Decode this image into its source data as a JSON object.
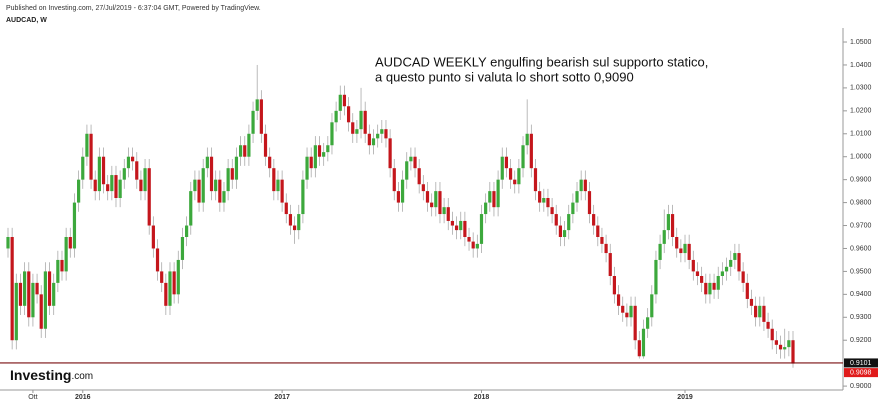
{
  "chart_data": {
    "type": "candlestick",
    "published": "Published on Investing.com, 27/Jul/2019 - 6:37:04 GMT, Powered by TradingView.",
    "title": "AUDCAD, W",
    "annotation": [
      "AUDCAD WEEKLY engulfing bearish sul supporto statico,",
      "a questo punto si valuta lo short sotto 0,9090"
    ],
    "logo": [
      "Investing",
      ".com"
    ],
    "up_color": "#3ca83c",
    "down_color": "#c4161c",
    "ylim": [
      0.8983,
      1.0596
    ],
    "yticks": [
      {
        "value": 0.9,
        "label": "0.9000"
      },
      {
        "value": 0.92,
        "label": "0.9200"
      },
      {
        "value": 0.93,
        "label": "0.9300"
      },
      {
        "value": 0.94,
        "label": "0.9400"
      },
      {
        "value": 0.95,
        "label": "0.9500"
      },
      {
        "value": 0.96,
        "label": "0.9600"
      },
      {
        "value": 0.97,
        "label": "0.9700"
      },
      {
        "value": 0.98,
        "label": "0.9800"
      },
      {
        "value": 0.99,
        "label": "0.9900"
      },
      {
        "value": 1.0,
        "label": "1.0000"
      },
      {
        "value": 1.01,
        "label": "1.0100"
      },
      {
        "value": 1.02,
        "label": "1.0200"
      },
      {
        "value": 1.03,
        "label": "1.0300"
      },
      {
        "value": 1.04,
        "label": "1.0400"
      },
      {
        "value": 1.05,
        "label": "1.0500"
      }
    ],
    "xticks": [
      {
        "value": 6,
        "label": "Ott"
      },
      {
        "value": 18,
        "label": "2016"
      },
      {
        "value": 66,
        "label": "2017"
      },
      {
        "value": 114,
        "label": "2018"
      },
      {
        "value": 163,
        "label": "2019"
      }
    ],
    "price_line": {
      "value": 0.9101,
      "label": "0.9101",
      "color": "#7a0f12"
    },
    "last_price": {
      "value": 0.9098,
      "label": "0.9098",
      "color": "#e01b1b"
    },
    "open": [
      0.96,
      0.965,
      0.92,
      0.945,
      0.935,
      0.95,
      0.93,
      0.945,
      0.94,
      0.925,
      0.95,
      0.935,
      0.945,
      0.955,
      0.95,
      0.965,
      0.96,
      0.98,
      0.99,
      1.0,
      1.01,
      0.99,
      0.985,
      1.0,
      0.988,
      0.985,
      0.992,
      0.982,
      0.99,
      0.995,
      1.0,
      0.998,
      0.99,
      0.985,
      0.995,
      0.97,
      0.96,
      0.95,
      0.945,
      0.935,
      0.95,
      0.94,
      0.955,
      0.965,
      0.97,
      0.985,
      0.99,
      0.98,
      0.995,
      1.0,
      0.985,
      0.99,
      0.98,
      0.985,
      0.995,
      0.99,
      1.0,
      1.005,
      1.0,
      1.01,
      1.02,
      1.025,
      1.01,
      1.0,
      0.995,
      0.985,
      0.99,
      0.98,
      0.975,
      0.97,
      0.968,
      0.975,
      0.99,
      1.0,
      0.995,
      1.005,
      1.0,
      1.002,
      1.005,
      1.015,
      1.02,
      1.027,
      1.022,
      1.015,
      1.01,
      1.012,
      1.02,
      1.01,
      1.005,
      1.008,
      1.01,
      1.012,
      1.008,
      0.995,
      0.985,
      0.98,
      0.99,
      0.998,
      1.0,
      0.995,
      0.988,
      0.985,
      0.98,
      0.978,
      0.985,
      0.975,
      0.978,
      0.972,
      0.97,
      0.968,
      0.972,
      0.965,
      0.963,
      0.96,
      0.962,
      0.975,
      0.98,
      0.985,
      0.978,
      0.99,
      1.0,
      0.995,
      0.99,
      0.988,
      0.995,
      1.005,
      1.01,
      0.995,
      0.985,
      0.98,
      0.982,
      0.978,
      0.975,
      0.97,
      0.965,
      0.968,
      0.975,
      0.98,
      0.985,
      0.99,
      0.985,
      0.975,
      0.97,
      0.965,
      0.962,
      0.958,
      0.948,
      0.94,
      0.935,
      0.932,
      0.93,
      0.935,
      0.92,
      0.913,
      0.925,
      0.93,
      0.94,
      0.955,
      0.962,
      0.968,
      0.975,
      0.965,
      0.96,
      0.958,
      0.962,
      0.955,
      0.95,
      0.948,
      0.945,
      0.94,
      0.945,
      0.942,
      0.948,
      0.95,
      0.952,
      0.955,
      0.958,
      0.95,
      0.945,
      0.938,
      0.935,
      0.93,
      0.935,
      0.928,
      0.925,
      0.92,
      0.918,
      0.916,
      0.917,
      0.92
    ],
    "high": [
      0.969,
      0.969,
      0.949,
      0.949,
      0.954,
      0.954,
      0.949,
      0.949,
      0.944,
      0.954,
      0.954,
      0.949,
      0.959,
      0.959,
      0.969,
      0.969,
      0.984,
      0.994,
      1.004,
      1.014,
      1.014,
      0.994,
      1.004,
      1.004,
      0.992,
      0.996,
      0.996,
      0.994,
      0.999,
      1.004,
      1.004,
      1.002,
      0.994,
      0.999,
      0.999,
      0.974,
      0.964,
      0.954,
      0.949,
      0.954,
      0.954,
      0.959,
      0.969,
      0.974,
      0.989,
      0.994,
      0.994,
      0.999,
      1.004,
      1.004,
      0.994,
      0.994,
      0.989,
      0.999,
      0.999,
      1.004,
      1.009,
      1.009,
      1.014,
      1.024,
      1.04,
      1.029,
      1.014,
      1.004,
      0.999,
      0.994,
      0.994,
      0.984,
      0.979,
      0.974,
      0.979,
      0.994,
      1.004,
      1.004,
      1.009,
      1.009,
      1.006,
      1.009,
      1.019,
      1.024,
      1.031,
      1.031,
      1.026,
      1.019,
      1.016,
      1.03,
      1.024,
      1.014,
      1.012,
      1.014,
      1.016,
      1.016,
      1.012,
      0.999,
      0.989,
      0.994,
      1.002,
      1.004,
      1.004,
      0.999,
      0.992,
      0.989,
      0.984,
      0.989,
      0.989,
      0.982,
      0.982,
      0.976,
      0.974,
      0.976,
      0.976,
      0.969,
      0.967,
      0.966,
      0.979,
      0.984,
      0.989,
      0.989,
      0.994,
      1.004,
      1.004,
      0.999,
      0.994,
      0.999,
      1.009,
      1.025,
      1.014,
      0.999,
      0.989,
      0.986,
      0.986,
      0.982,
      0.979,
      0.974,
      0.972,
      0.979,
      0.984,
      0.989,
      0.994,
      0.994,
      0.989,
      0.979,
      0.974,
      0.969,
      0.966,
      0.962,
      0.952,
      0.944,
      0.939,
      0.936,
      0.939,
      0.939,
      0.924,
      0.929,
      0.934,
      0.944,
      0.959,
      0.966,
      0.977,
      0.979,
      0.979,
      0.969,
      0.964,
      0.966,
      0.966,
      0.959,
      0.954,
      0.952,
      0.949,
      0.949,
      0.949,
      0.952,
      0.954,
      0.956,
      0.959,
      0.962,
      0.962,
      0.954,
      0.949,
      0.942,
      0.939,
      0.939,
      0.939,
      0.932,
      0.929,
      0.924,
      0.922,
      0.925,
      0.924,
      0.924
    ],
    "low": [
      0.956,
      0.916,
      0.916,
      0.931,
      0.931,
      0.926,
      0.926,
      0.936,
      0.921,
      0.921,
      0.931,
      0.931,
      0.941,
      0.946,
      0.946,
      0.956,
      0.956,
      0.976,
      0.986,
      0.996,
      0.986,
      0.981,
      0.981,
      0.984,
      0.981,
      0.981,
      0.978,
      0.978,
      0.986,
      0.991,
      0.994,
      0.986,
      0.981,
      0.981,
      0.966,
      0.956,
      0.946,
      0.941,
      0.931,
      0.931,
      0.936,
      0.936,
      0.951,
      0.961,
      0.966,
      0.981,
      0.976,
      0.976,
      0.991,
      0.981,
      0.981,
      0.976,
      0.976,
      0.981,
      0.986,
      0.986,
      0.996,
      0.996,
      0.996,
      1.006,
      1.016,
      1.006,
      0.996,
      0.991,
      0.981,
      0.981,
      0.976,
      0.971,
      0.966,
      0.962,
      0.964,
      0.971,
      0.986,
      0.991,
      0.991,
      0.996,
      0.996,
      0.998,
      1.001,
      1.011,
      1.016,
      1.018,
      1.011,
      1.006,
      1.006,
      1.008,
      1.006,
      1.001,
      1.001,
      1.004,
      1.006,
      1.004,
      0.991,
      0.981,
      0.976,
      0.976,
      0.986,
      0.994,
      0.991,
      0.984,
      0.981,
      0.976,
      0.974,
      0.974,
      0.971,
      0.971,
      0.968,
      0.966,
      0.964,
      0.964,
      0.961,
      0.959,
      0.956,
      0.956,
      0.958,
      0.971,
      0.976,
      0.974,
      0.974,
      0.986,
      0.991,
      0.986,
      0.984,
      0.984,
      0.991,
      1.001,
      0.991,
      0.981,
      0.976,
      0.976,
      0.974,
      0.971,
      0.966,
      0.961,
      0.961,
      0.964,
      0.971,
      0.976,
      0.981,
      0.981,
      0.971,
      0.966,
      0.961,
      0.958,
      0.954,
      0.944,
      0.936,
      0.931,
      0.928,
      0.926,
      0.926,
      0.916,
      0.912,
      0.912,
      0.921,
      0.926,
      0.936,
      0.951,
      0.958,
      0.964,
      0.961,
      0.956,
      0.954,
      0.954,
      0.951,
      0.946,
      0.944,
      0.941,
      0.936,
      0.936,
      0.938,
      0.938,
      0.944,
      0.946,
      0.948,
      0.951,
      0.946,
      0.941,
      0.934,
      0.931,
      0.926,
      0.926,
      0.924,
      0.921,
      0.916,
      0.914,
      0.912,
      0.912,
      0.913,
      0.908
    ],
    "close": [
      0.965,
      0.92,
      0.945,
      0.935,
      0.95,
      0.93,
      0.945,
      0.94,
      0.925,
      0.95,
      0.935,
      0.945,
      0.955,
      0.95,
      0.965,
      0.96,
      0.98,
      0.99,
      1.0,
      1.01,
      0.99,
      0.985,
      1.0,
      0.988,
      0.985,
      0.992,
      0.982,
      0.99,
      0.995,
      1.0,
      0.998,
      0.99,
      0.985,
      0.995,
      0.97,
      0.96,
      0.95,
      0.945,
      0.935,
      0.95,
      0.94,
      0.955,
      0.965,
      0.97,
      0.985,
      0.99,
      0.98,
      0.995,
      1.0,
      0.985,
      0.99,
      0.98,
      0.985,
      0.995,
      0.99,
      1.0,
      1.005,
      1.0,
      1.01,
      1.02,
      1.025,
      1.01,
      1.0,
      0.995,
      0.985,
      0.99,
      0.98,
      0.975,
      0.97,
      0.968,
      0.975,
      0.99,
      1.0,
      0.995,
      1.005,
      1.0,
      1.002,
      1.005,
      1.015,
      1.02,
      1.027,
      1.022,
      1.015,
      1.01,
      1.012,
      1.02,
      1.01,
      1.005,
      1.008,
      1.01,
      1.012,
      1.008,
      0.995,
      0.985,
      0.98,
      0.99,
      0.998,
      1.0,
      0.995,
      0.988,
      0.985,
      0.98,
      0.978,
      0.985,
      0.975,
      0.978,
      0.972,
      0.97,
      0.968,
      0.972,
      0.965,
      0.963,
      0.96,
      0.962,
      0.975,
      0.98,
      0.985,
      0.978,
      0.99,
      1.0,
      0.995,
      0.99,
      0.988,
      0.995,
      1.005,
      1.01,
      0.995,
      0.985,
      0.98,
      0.982,
      0.978,
      0.975,
      0.97,
      0.965,
      0.968,
      0.975,
      0.98,
      0.985,
      0.99,
      0.985,
      0.975,
      0.97,
      0.965,
      0.962,
      0.958,
      0.948,
      0.94,
      0.935,
      0.932,
      0.93,
      0.935,
      0.92,
      0.913,
      0.925,
      0.93,
      0.94,
      0.955,
      0.962,
      0.968,
      0.975,
      0.965,
      0.96,
      0.958,
      0.962,
      0.955,
      0.95,
      0.948,
      0.945,
      0.94,
      0.945,
      0.942,
      0.948,
      0.95,
      0.952,
      0.955,
      0.958,
      0.95,
      0.945,
      0.938,
      0.935,
      0.93,
      0.935,
      0.928,
      0.925,
      0.92,
      0.918,
      0.916,
      0.917,
      0.92,
      0.9098
    ]
  }
}
